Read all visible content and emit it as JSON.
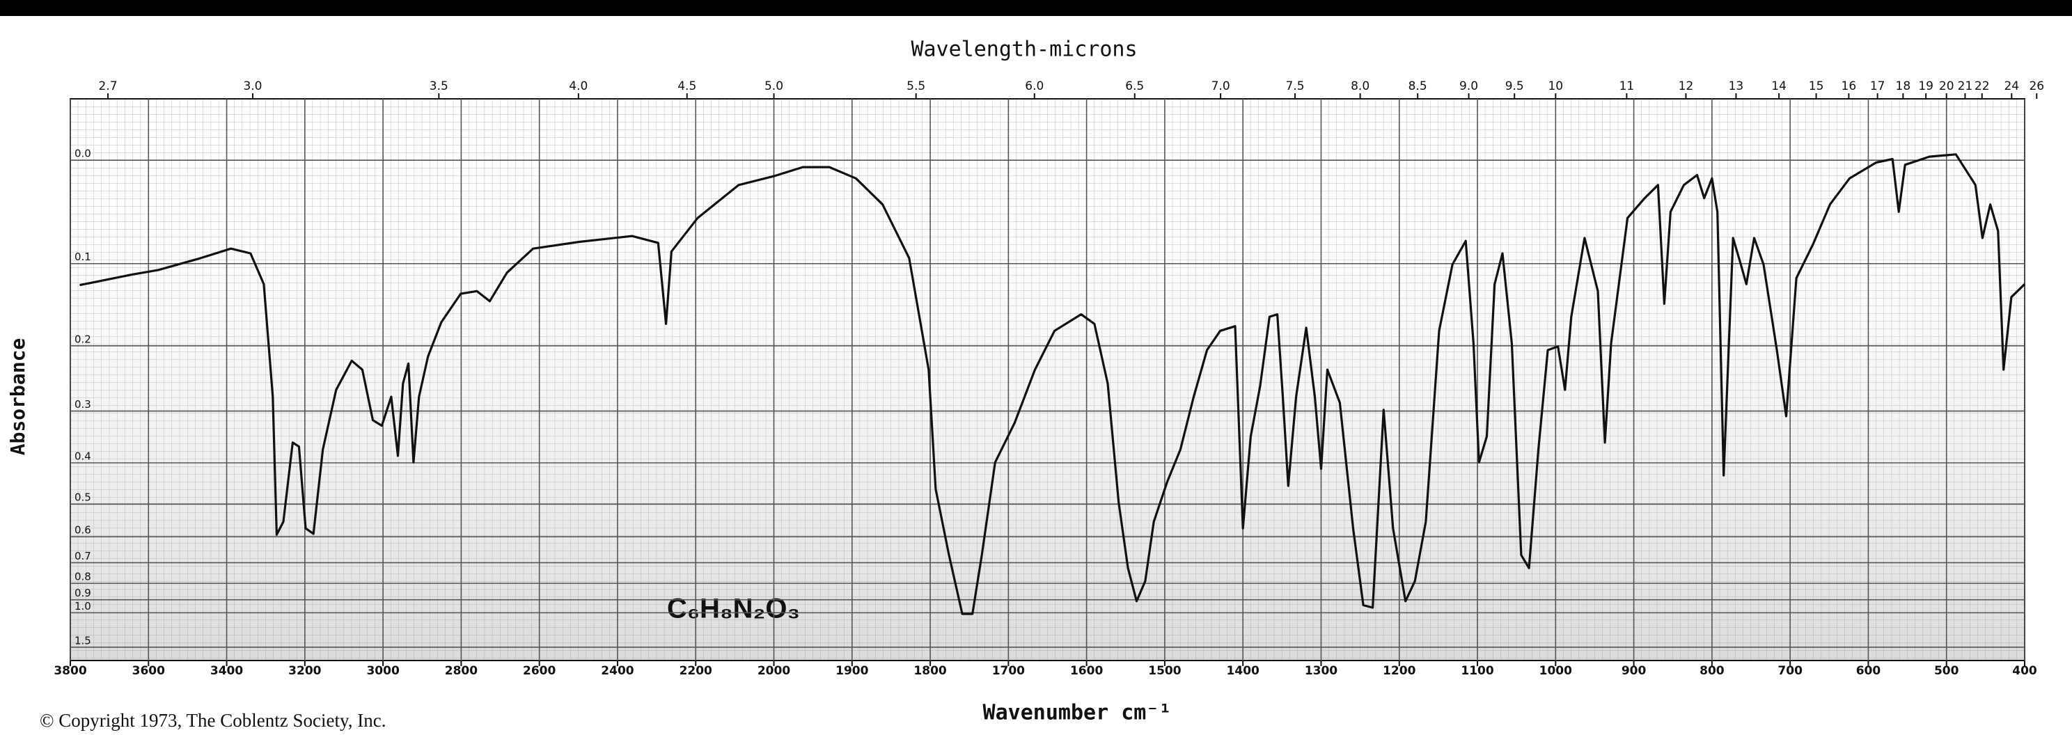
{
  "chart_data": {
    "type": "line",
    "title": "Wavelength-microns",
    "xlabel": "Wavenumber cm⁻¹",
    "ylabel": "Absorbance",
    "footnote": "© Copyright 1973, The Coblentz Society, Inc.",
    "formula": "C₆H₈N₂O₃",
    "color": "#111111",
    "xlim": [
      3800,
      400
    ],
    "x_break": 2000,
    "ylim": [
      -0.05,
      2.3
    ],
    "yscale": "absorbance",
    "grid": true,
    "xticks": [
      3800,
      3600,
      3400,
      3200,
      3000,
      2800,
      2600,
      2400,
      2200,
      2000,
      1900,
      1800,
      1700,
      1600,
      1500,
      1400,
      1300,
      1200,
      1100,
      1000,
      900,
      800,
      700,
      600,
      500,
      400
    ],
    "yticks": [
      {
        "value": 0,
        "label": "0.0"
      },
      0.1,
      0.2,
      0.3,
      0.4,
      0.5,
      0.6,
      0.7,
      0.8,
      0.9,
      {
        "value": 1,
        "label": "1.0"
      },
      1.5
    ],
    "x2ticks": [
      2.7,
      {
        "value": 3,
        "label": "3.0"
      },
      3.5,
      {
        "value": 4,
        "label": "4.0"
      },
      4.5,
      {
        "value": 5,
        "label": "5.0"
      },
      5.5,
      {
        "value": 6,
        "label": "6.0"
      },
      6.5,
      {
        "value": 7,
        "label": "7.0"
      },
      7.5,
      {
        "value": 8,
        "label": "8.0"
      },
      8.5,
      {
        "value": 9,
        "label": "9.0"
      },
      9.5,
      10,
      11,
      12,
      13,
      14,
      15,
      16,
      17,
      18,
      19,
      20,
      21,
      22,
      24,
      26
    ],
    "x": [
      3776,
      3642,
      3575,
      3474,
      3389,
      3339,
      3305,
      3282,
      3272,
      3255,
      3231,
      3215,
      3198,
      3178,
      3154,
      3120,
      3080,
      3053,
      3026,
      3003,
      2979,
      2962,
      2949,
      2935,
      2922,
      2908,
      2885,
      2851,
      2801,
      2760,
      2727,
      2683,
      2616,
      2498,
      2363,
      2296,
      2276,
      2262,
      2195,
      2090,
      2000,
      1963,
      1929,
      1895,
      1861,
      1827,
      1802,
      1793,
      1776,
      1759,
      1746,
      1734,
      1717,
      1692,
      1666,
      1641,
      1607,
      1590,
      1573,
      1559,
      1547,
      1536,
      1525,
      1514,
      1497,
      1480,
      1463,
      1446,
      1429,
      1410,
      1400,
      1390,
      1378,
      1366,
      1356,
      1349,
      1342,
      1332,
      1319,
      1308,
      1300,
      1292,
      1276,
      1259,
      1246,
      1234,
      1220,
      1208,
      1192,
      1180,
      1166,
      1149,
      1132,
      1115,
      1105,
      1098,
      1088,
      1078,
      1068,
      1056,
      1044,
      1034,
      1022,
      1010,
      997,
      988,
      980,
      963,
      946,
      937,
      929,
      908,
      886,
      869,
      861,
      853,
      836,
      819,
      810,
      800,
      793,
      785,
      773,
      763,
      756,
      746,
      734,
      717,
      705,
      692,
      671,
      649,
      624,
      590,
      569,
      561,
      553,
      522,
      488,
      463,
      454,
      444,
      434,
      427,
      417,
      400
    ],
    "values": [
      0.124,
      0.112,
      0.107,
      0.095,
      0.084,
      0.089,
      0.123,
      0.276,
      0.593,
      0.551,
      0.358,
      0.366,
      0.572,
      0.59,
      0.372,
      0.265,
      0.221,
      0.234,
      0.316,
      0.326,
      0.276,
      0.385,
      0.255,
      0.225,
      0.399,
      0.276,
      0.215,
      0.169,
      0.134,
      0.131,
      0.143,
      0.11,
      0.084,
      0.077,
      0.071,
      0.078,
      0.171,
      0.087,
      0.053,
      0.022,
      0.014,
      0.006,
      0.006,
      0.016,
      0.04,
      0.094,
      0.234,
      0.461,
      0.668,
      1.01,
      1.01,
      0.668,
      0.399,
      0.321,
      0.234,
      0.18,
      0.159,
      0.171,
      0.255,
      0.495,
      0.724,
      0.91,
      0.788,
      0.551,
      0.444,
      0.372,
      0.276,
      0.206,
      0.18,
      0.174,
      0.572,
      0.346,
      0.259,
      0.162,
      0.159,
      0.276,
      0.453,
      0.276,
      0.176,
      0.276,
      0.413,
      0.234,
      0.286,
      0.572,
      0.939,
      0.958,
      0.298,
      0.572,
      0.91,
      0.788,
      0.551,
      0.18,
      0.101,
      0.076,
      0.197,
      0.399,
      0.346,
      0.123,
      0.089,
      0.197,
      0.668,
      0.724,
      0.372,
      0.206,
      0.201,
      0.265,
      0.162,
      0.073,
      0.131,
      0.358,
      0.197,
      0.053,
      0.034,
      0.022,
      0.146,
      0.047,
      0.022,
      0.013,
      0.034,
      0.016,
      0.047,
      0.428,
      0.073,
      0.101,
      0.123,
      0.073,
      0.101,
      0.206,
      0.309,
      0.116,
      0.08,
      0.04,
      0.016,
      0.002,
      -0.001,
      0.047,
      0.004,
      -0.003,
      -0.005,
      0.022,
      0.073,
      0.04,
      0.066,
      0.234,
      0.138,
      0.123
    ]
  }
}
